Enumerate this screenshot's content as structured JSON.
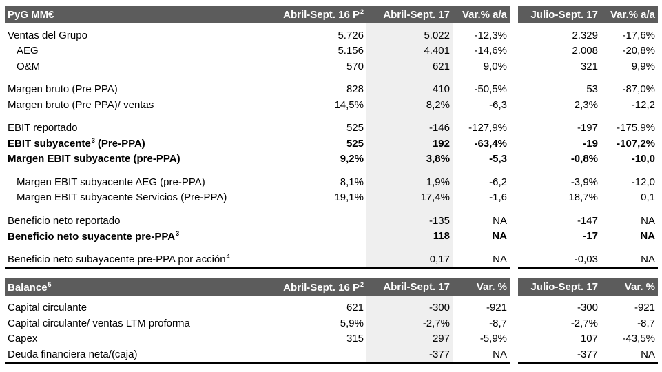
{
  "pyg": {
    "header": {
      "title": "PyG MM€",
      "columns": [
        {
          "text": "Abril-Sept. 16 P",
          "sup": "2"
        },
        {
          "text": "Abril-Sept. 17"
        },
        {
          "text": "Var.% a/a"
        },
        {
          "text": "Julio-Sept. 17"
        },
        {
          "text": "Var.% a/a"
        }
      ]
    },
    "rows": [
      {
        "label": "Ventas del Grupo",
        "cells": [
          "5.726",
          "5.022",
          "-12,3%",
          "2.329",
          "-17,6%"
        ]
      },
      {
        "label": "AEG",
        "cells": [
          "5.156",
          "4.401",
          "-14,6%",
          "2.008",
          "-20,8%"
        ]
      },
      {
        "label": "O&M",
        "cells": [
          "570",
          "621",
          "9,0%",
          "321",
          "9,9%"
        ]
      },
      {
        "label": "Margen bruto (Pre PPA)",
        "cells": [
          "828",
          "410",
          "-50,5%",
          "53",
          "-87,0%"
        ]
      },
      {
        "label": "Margen bruto (Pre PPA)/ ventas",
        "cells": [
          "14,5%",
          "8,2%",
          "-6,3",
          "2,3%",
          "-12,2"
        ]
      },
      {
        "label": "EBIT reportado",
        "cells": [
          "525",
          "-146",
          "-127,9%",
          "-197",
          "-175,9%"
        ]
      },
      {
        "label": "EBIT subyacente",
        "sup": "3",
        "after": "(Pre-PPA)",
        "cells": [
          "525",
          "192",
          "-63,4%",
          "-19",
          "-107,2%"
        ]
      },
      {
        "label": "Margen EBIT subyacente (pre-PPA)",
        "cells": [
          "9,2%",
          "3,8%",
          "-5,3",
          "-0,8%",
          "-10,0"
        ]
      },
      {
        "label": "Margen EBIT subyacente AEG (pre-PPA)",
        "cells": [
          "8,1%",
          "1,9%",
          "-6,2",
          "-3,9%",
          "-12,0"
        ]
      },
      {
        "label": "Margen EBIT subyacente Servicios (Pre-PPA)",
        "cells": [
          "19,1%",
          "17,4%",
          "-1,6",
          "18,7%",
          "0,1"
        ]
      },
      {
        "label": "Beneficio neto reportado",
        "cells": [
          null,
          "-135",
          "NA",
          "-147",
          "NA"
        ]
      },
      {
        "label": "Beneficio neto suyacente pre-PPA",
        "sup": "3",
        "cells": [
          null,
          "118",
          "NA",
          "-17",
          "NA"
        ]
      },
      {
        "label": "Beneficio neto subayacente pre-PPA por acción",
        "sup": "4",
        "cells": [
          null,
          "0,17",
          "NA",
          "-0,03",
          "NA"
        ]
      }
    ]
  },
  "balance": {
    "header": {
      "title": "Balance",
      "sup": "5",
      "columns": [
        {
          "text": "Abril-Sept. 16 P",
          "sup": "2"
        },
        {
          "text": "Abril-Sept. 17"
        },
        {
          "text": "Var. %"
        },
        {
          "text": "Julio-Sept. 17"
        },
        {
          "text": "Var. %"
        }
      ]
    },
    "rows": [
      {
        "label": "Capital circulante",
        "cells": [
          "621",
          "-300",
          "-921",
          "-300",
          "-921"
        ]
      },
      {
        "label": "Capital circulante/ ventas LTM proforma",
        "cells": [
          "5,9%",
          "-2,7%",
          "-8,7",
          "-2,7%",
          "-8,7"
        ]
      },
      {
        "label": "Capex",
        "cells": [
          "315",
          "297",
          "-5,9%",
          "107",
          "-43,5%"
        ]
      },
      {
        "label": "Deuda financiera neta/(caja)",
        "cells": [
          null,
          "-377",
          "NA",
          "-377",
          "NA"
        ]
      }
    ]
  }
}
